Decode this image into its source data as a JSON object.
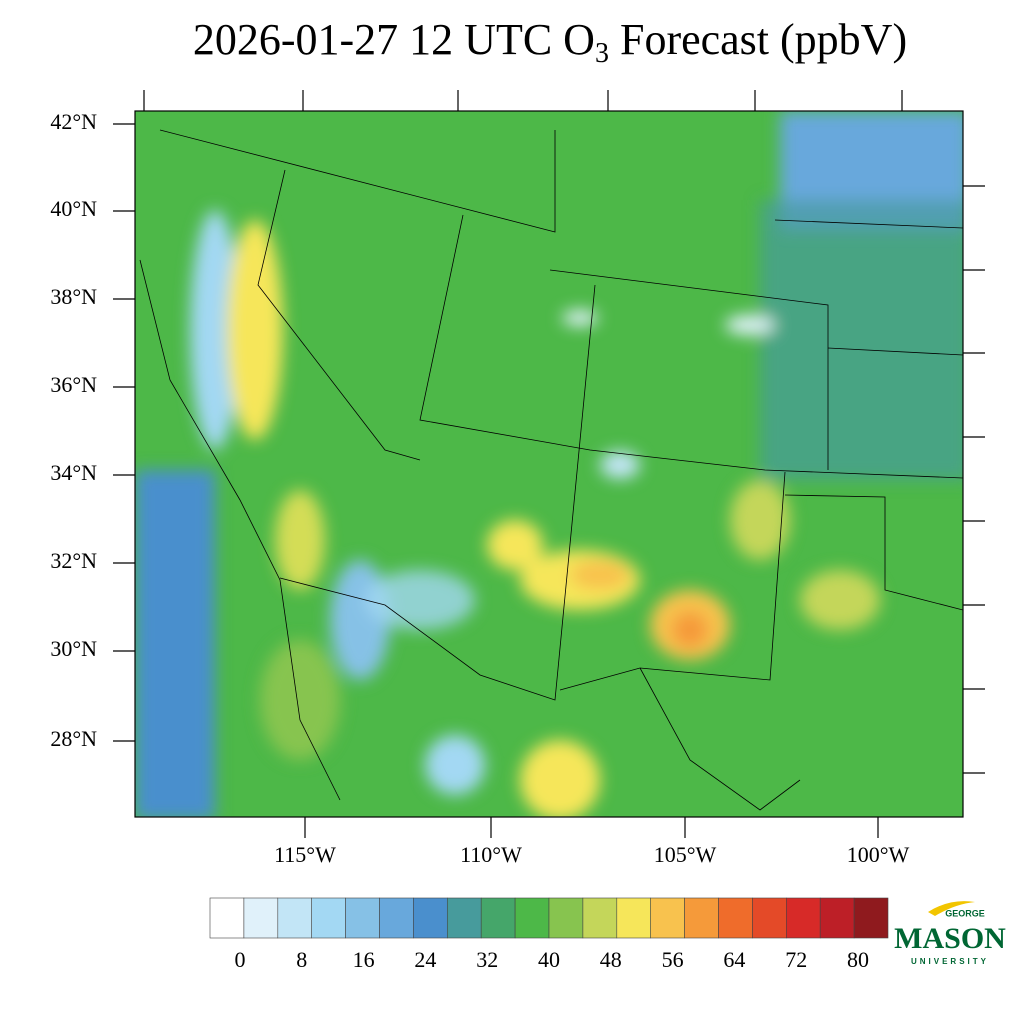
{
  "header": {
    "title_main": "2026-01-27 12 UTC O",
    "title_sub": "3",
    "title_rest": " Forecast (ppbV)"
  },
  "map": {
    "lat_labels": [
      "42°N",
      "40°N",
      "38°N",
      "36°N",
      "34°N",
      "32°N",
      "30°N",
      "28°N"
    ],
    "lon_labels": [
      "115°W",
      "110°W",
      "105°W",
      "100°W"
    ]
  },
  "colorbar": {
    "labels": [
      "0",
      "8",
      "16",
      "24",
      "32",
      "40",
      "48",
      "56",
      "64",
      "72",
      "80"
    ],
    "colors": [
      "#ffffff",
      "#e0f1fa",
      "#c2e5f6",
      "#a3d8f3",
      "#86c1e6",
      "#68a8dc",
      "#4a8fcd",
      "#479b9c",
      "#45a66a",
      "#4db848",
      "#87c44f",
      "#c4d65a",
      "#f6e65a",
      "#f8c24e",
      "#f59a3a",
      "#ef6c2b",
      "#e44a28",
      "#d72a28",
      "#bd1f27",
      "#8f1a1e"
    ]
  },
  "logo": {
    "top": "GEORGE",
    "main": "MASON",
    "bottom": "UNIVERSITY"
  }
}
